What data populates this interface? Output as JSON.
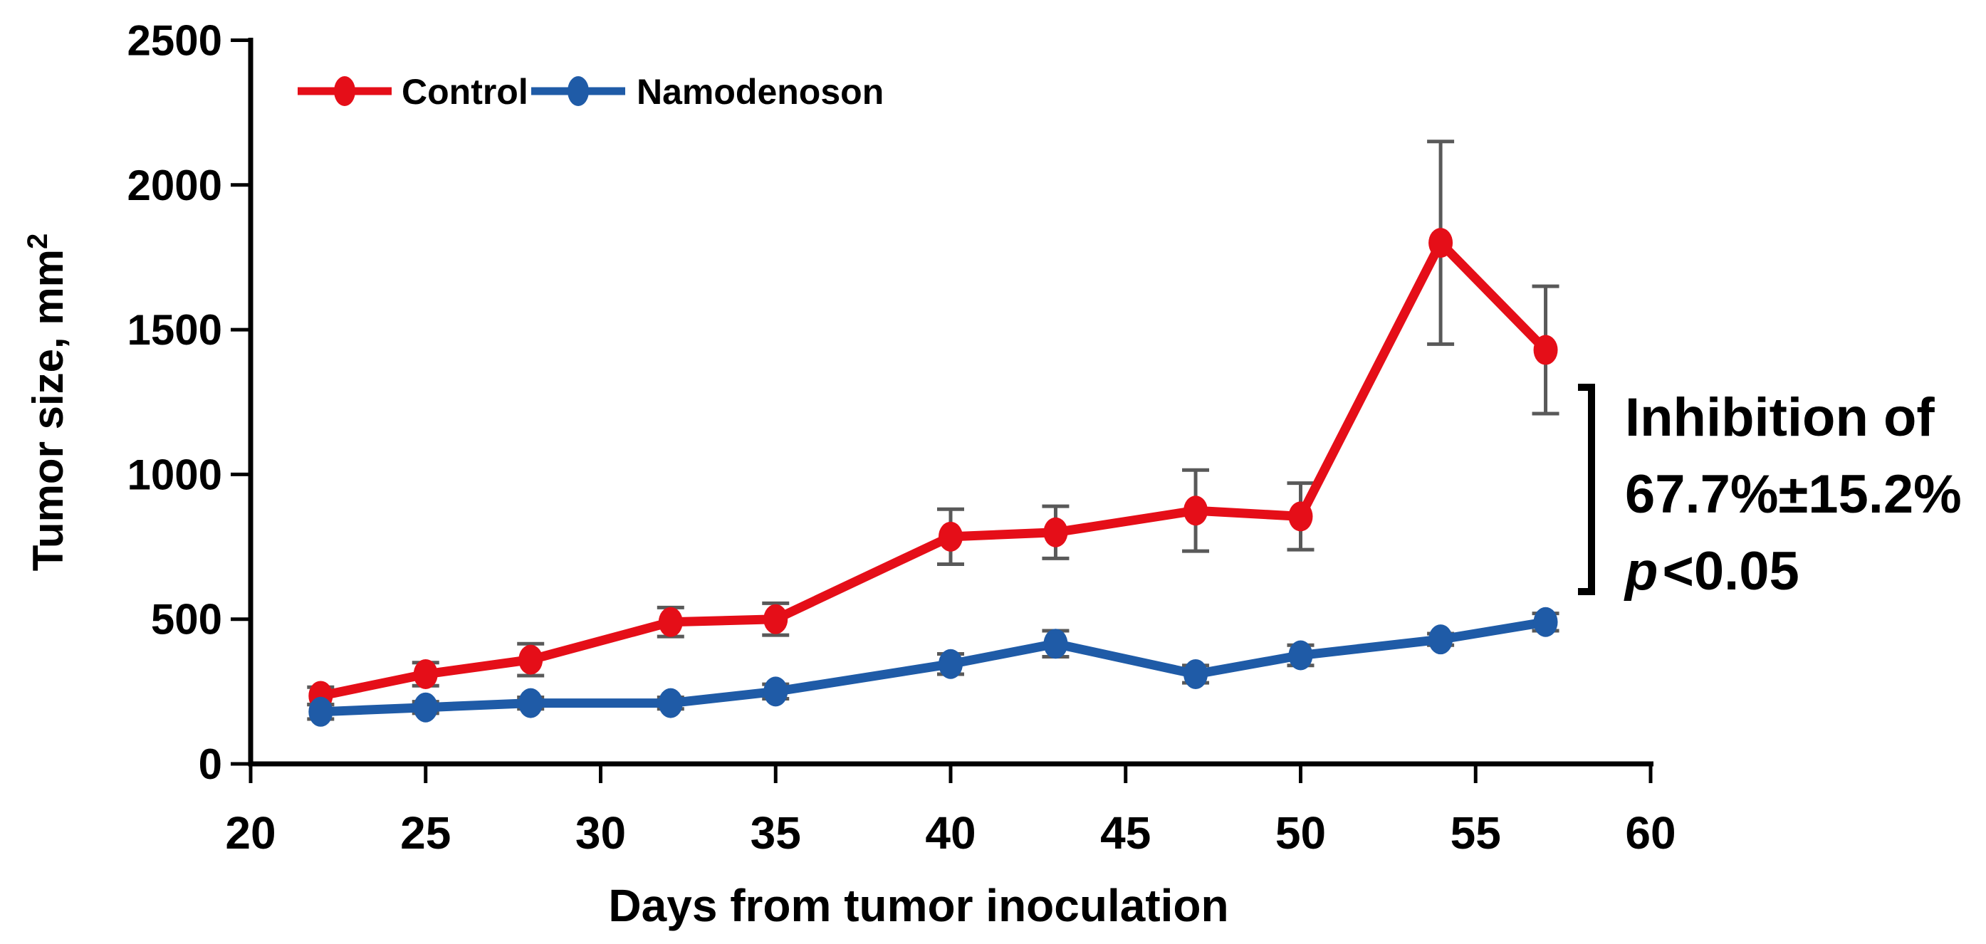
{
  "chart_data": {
    "type": "line",
    "title": "",
    "xlabel": "Days from tumor inoculation",
    "ylabel": "Tumor size, mm²",
    "ylabel_main": "Tumor size, mm",
    "ylabel_sup": "2",
    "xlim": [
      20,
      60
    ],
    "ylim": [
      0,
      2500
    ],
    "x_ticks": [
      20,
      25,
      30,
      35,
      40,
      45,
      50,
      55,
      60
    ],
    "y_ticks": [
      0,
      500,
      1000,
      1500,
      2000,
      2500
    ],
    "grid": false,
    "legend_position": "top-left-inside",
    "x": [
      22,
      25,
      28,
      32,
      35,
      40,
      43,
      47,
      50,
      54,
      57
    ],
    "series": [
      {
        "name": "Control",
        "color": "#e50e18",
        "values": [
          235,
          310,
          360,
          490,
          500,
          785,
          800,
          875,
          855,
          1800,
          1430
        ],
        "errors": [
          30,
          40,
          55,
          50,
          55,
          95,
          90,
          140,
          115,
          350,
          220
        ]
      },
      {
        "name": "Namodenoson",
        "color": "#1f5ba7",
        "values": [
          180,
          195,
          210,
          210,
          250,
          345,
          415,
          310,
          375,
          430,
          490
        ],
        "errors": [
          25,
          20,
          20,
          20,
          25,
          35,
          45,
          30,
          35,
          20,
          30
        ]
      }
    ],
    "error_bar_color": "#595959"
  },
  "legend": {
    "control_label": "Control",
    "namodenoson_label": "Namodenoson"
  },
  "annotation": {
    "line1": "Inhibition of",
    "line2": "67.7%±15.2%",
    "line3_p": "p",
    "line3_rest": "<0.05"
  },
  "colors": {
    "control": "#e50e18",
    "namodenoson": "#1f5ba7",
    "error_bar": "#595959",
    "axis": "#000000"
  }
}
